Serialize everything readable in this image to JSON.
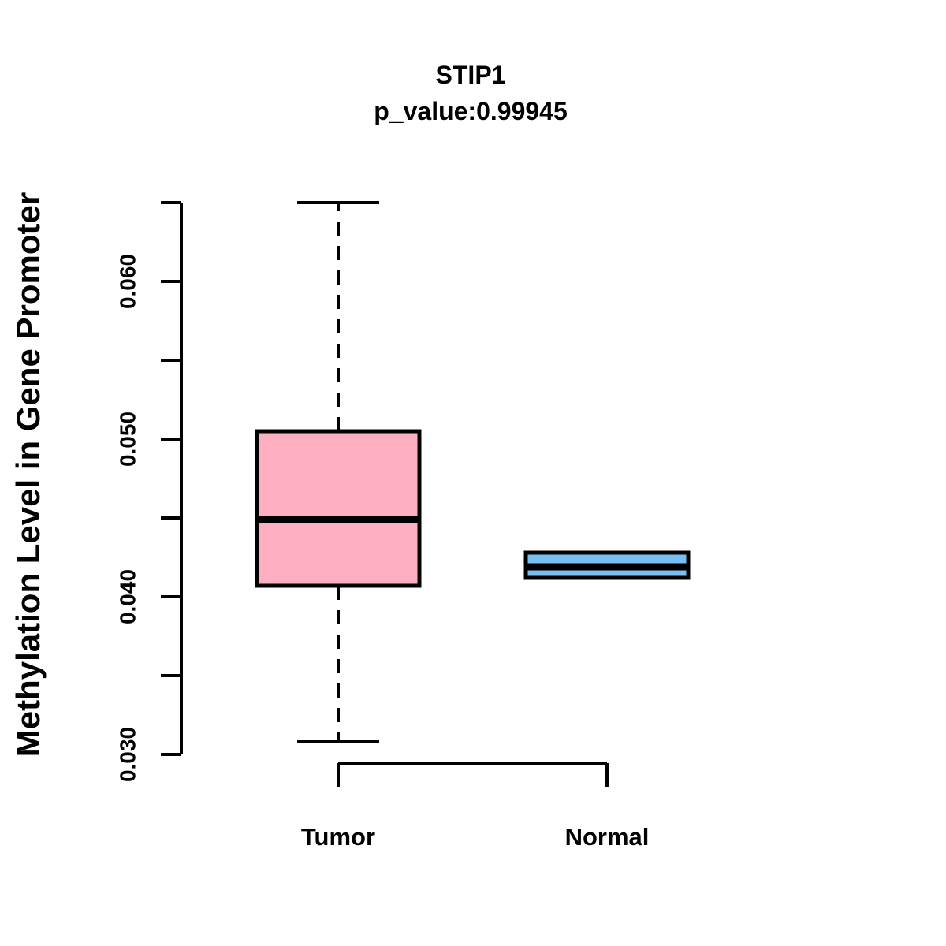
{
  "chart_data": {
    "type": "boxplot",
    "title": "STIP1",
    "subtitle": "p_value:0.99945",
    "ylabel": "Methylation Level in Gene Promoter",
    "xlabel": "",
    "background_color": "#FFFFFF",
    "line_color": "#000000",
    "y_axis": {
      "min": 0.03,
      "max": 0.065,
      "tick_step": 0.005,
      "labeled_ticks": [
        "0.030",
        "0.040",
        "0.050",
        "0.060"
      ],
      "grid": false
    },
    "categories": [
      "Tumor",
      "Normal"
    ],
    "series": [
      {
        "name": "Tumor",
        "color": "#FDAEC0",
        "whisker_low": 0.0308,
        "q1": 0.0407,
        "median": 0.0449,
        "q3": 0.0505,
        "whisker_high": 0.065
      },
      {
        "name": "Normal",
        "color": "#78BEF0",
        "whisker_low": null,
        "q1": 0.0412,
        "median": 0.0419,
        "q3": 0.0428,
        "whisker_high": null
      }
    ],
    "legend": "none"
  }
}
